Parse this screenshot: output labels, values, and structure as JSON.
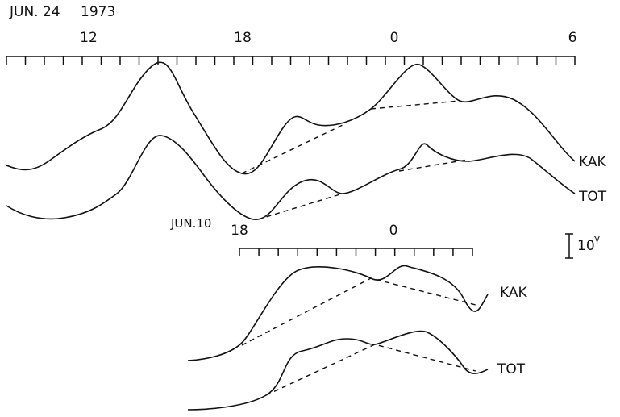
{
  "header": {
    "date": "JUN. 24",
    "year": "1973"
  },
  "top_axis": {
    "labels": [
      "12",
      "18",
      "0",
      "6"
    ]
  },
  "top_traces": {
    "kak": "KAK",
    "tot": "TOT"
  },
  "bottom_axis": {
    "date": "JUN.10",
    "labels": [
      "18",
      "0"
    ]
  },
  "bottom_traces": {
    "kak": "KAK",
    "tot": "TOT"
  },
  "scale": {
    "value": "10",
    "unit": "γ"
  }
}
